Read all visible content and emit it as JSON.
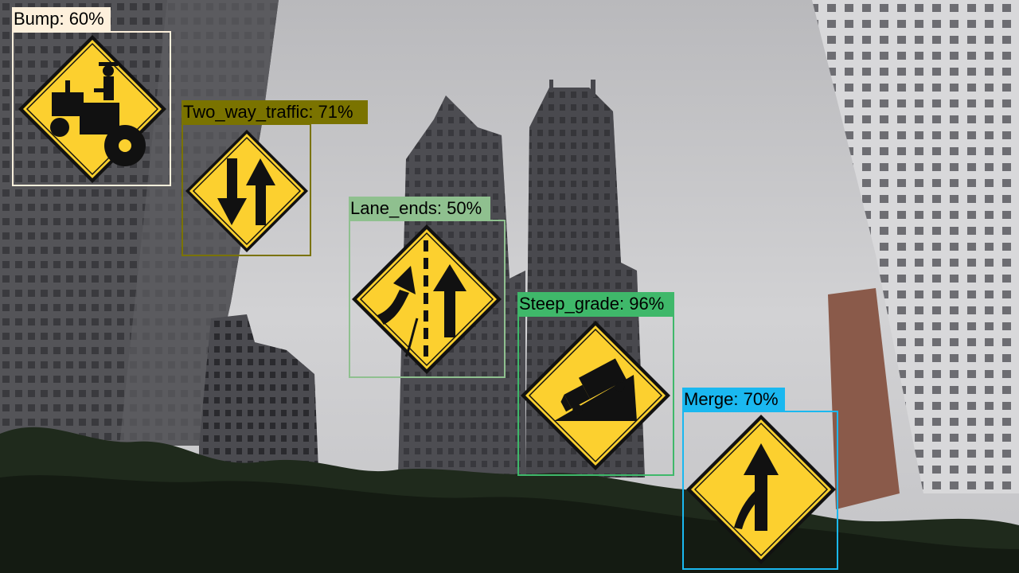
{
  "detections": [
    {
      "label": "Bump: 60%",
      "color": "#fdf0dc",
      "icon": "tractor-sign-icon"
    },
    {
      "label": "Two_way_traffic: 71%",
      "color": "#7a7300",
      "icon": "two-way-traffic-sign-icon"
    },
    {
      "label": "Lane_ends: 50%",
      "color": "#8fc08f",
      "icon": "lane-ends-sign-icon"
    },
    {
      "label": "Steep_grade: 96%",
      "color": "#3fb86a",
      "icon": "steep-grade-truck-sign-icon"
    },
    {
      "label": "Merge: 70%",
      "color": "#1ab8f0",
      "icon": "merge-sign-icon"
    }
  ],
  "colors": {
    "sign_yellow": "#fcd02f",
    "sky": "#c9c9cb",
    "building_dark": "#4a4a4e",
    "foliage": "#1f2a1c"
  }
}
